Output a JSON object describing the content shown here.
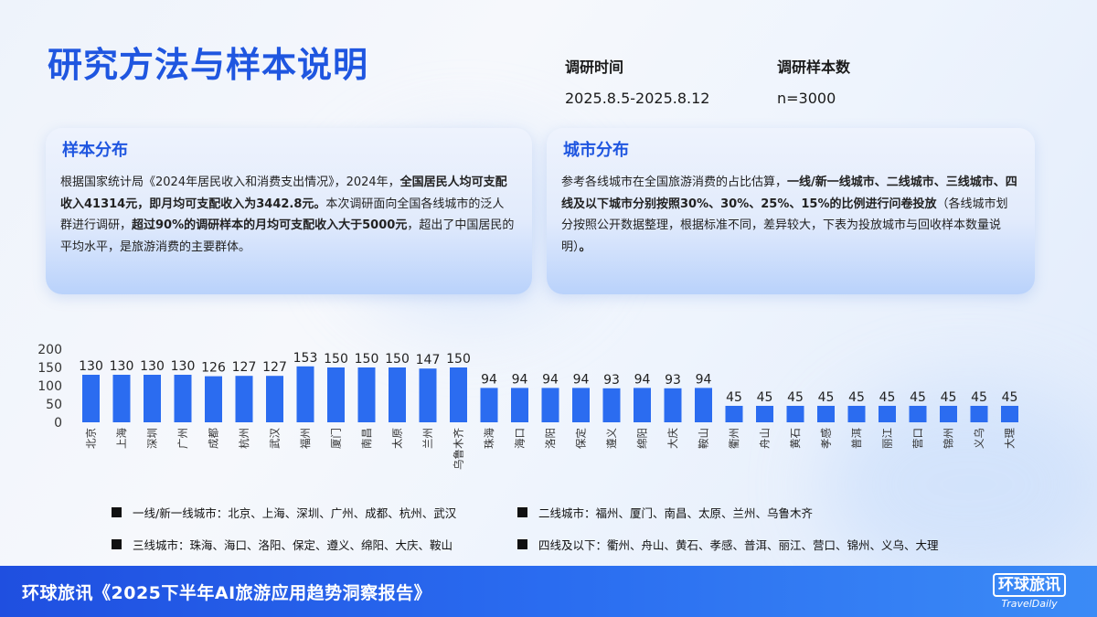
{
  "page": {
    "title": "研究方法与样本说明",
    "survey_time_label": "调研时间",
    "survey_time_value": "2025.8.5-2025.8.12",
    "sample_label": "调研样本数",
    "sample_value": "n=3000"
  },
  "cards": {
    "sample": {
      "title": "样本分布",
      "p1": "根据国家统计局《2024年居民收入和消费支出情况》，2024年，",
      "b1": "全国居民人均可支配收入41314元，即月均可支配收入为3442.8元。",
      "p2": "本次调研面向全国各线城市的泛人群进行调研，",
      "b2": "超过90%的调研样本的月均可支配收入大于5000元",
      "p3": "，超出了中国居民的平均水平，是旅游消费的主要群体。"
    },
    "city": {
      "title": "城市分布",
      "p1": "参考各线城市在全国旅游消费的占比估算，",
      "b1": "一线/新一线城市、二线城市、三线城市、四线及以下城市分别按照30%、30%、25%、15%的比例进行问卷投放",
      "p2": "（各线城市划分按照公开数据整理，根据标准不同，差异较大，下表为投放城市与回收样本数量说明）",
      "b2": "。"
    }
  },
  "chart_data": {
    "type": "bar",
    "categories": [
      "北京",
      "上海",
      "深圳",
      "广州",
      "成都",
      "杭州",
      "武汉",
      "福州",
      "厦门",
      "南昌",
      "太原",
      "兰州",
      "乌鲁木齐",
      "珠海",
      "海口",
      "洛阳",
      "保定",
      "遵义",
      "绵阳",
      "大庆",
      "鞍山",
      "衢州",
      "舟山",
      "黄石",
      "孝感",
      "普洱",
      "丽江",
      "营口",
      "锦州",
      "义乌",
      "大理"
    ],
    "values": [
      130,
      130,
      130,
      130,
      126,
      127,
      127,
      153,
      150,
      150,
      150,
      147,
      150,
      94,
      94,
      94,
      94,
      93,
      94,
      93,
      94,
      45,
      45,
      45,
      45,
      45,
      45,
      45,
      45,
      45,
      45
    ],
    "ylim": [
      0,
      200
    ],
    "yticks": [
      0,
      50,
      100,
      150,
      200
    ],
    "color": "#2b6cf0",
    "grid": false
  },
  "legend": [
    {
      "label": "一线/新一线城市：北京、上海、深圳、广州、成都、杭州、武汉"
    },
    {
      "label": "二线城市：福州、厦门、南昌、太原、兰州、乌鲁木齐"
    },
    {
      "label": "三线城市：珠海、海口、洛阳、保定、遵义、绵阳、大庆、鞍山"
    },
    {
      "label": "四线及以下：衢州、舟山、黄石、孝感、普洱、丽江、营口、锦州、义乌、大理"
    }
  ],
  "footer": {
    "text": "环球旅讯《2025下半年AI旅游应用趋势洞察报告》",
    "logo_cn": "环球旅讯",
    "logo_en": "TravelDaily"
  }
}
